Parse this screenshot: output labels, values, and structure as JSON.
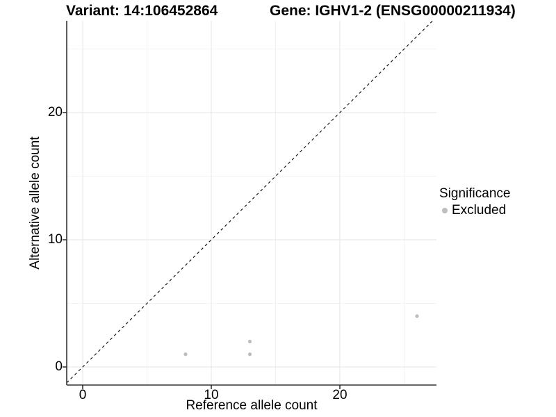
{
  "header": {
    "title_left": "Variant: 14:106452864",
    "title_right": "Gene: IGHV1-2 (ENSG00000211934)"
  },
  "chart_data": {
    "type": "scatter",
    "title": "Variant: 14:106452864 — Gene: IGHV1-2 (ENSG00000211934)",
    "xlabel": "Reference allele count",
    "ylabel": "Alternative allele count",
    "xlim": [
      -1.3,
      27.5
    ],
    "ylim": [
      -1.4,
      27.2
    ],
    "x_ticks": [
      0,
      10,
      20
    ],
    "y_ticks": [
      0,
      10,
      20
    ],
    "x_minor_ticks": [
      5,
      15,
      25
    ],
    "y_minor_ticks": [
      5,
      15,
      25
    ],
    "grid": true,
    "legend": {
      "title": "Significance",
      "position": "right",
      "entries": [
        {
          "label": "Excluded",
          "color": "#bdbdbd"
        }
      ]
    },
    "series": [
      {
        "name": "Excluded",
        "color": "#bdbdbd",
        "points": [
          [
            8,
            1
          ],
          [
            13,
            1
          ],
          [
            13,
            2
          ],
          [
            26,
            4
          ]
        ]
      }
    ],
    "reference_line": {
      "type": "identity y=x",
      "style": "dashed",
      "color": "#1a1a1a"
    },
    "colors": {
      "axis": "#333333",
      "grid_major": "#e6e6e6",
      "grid_minor": "#f3f3f3",
      "background": "#ffffff"
    }
  }
}
